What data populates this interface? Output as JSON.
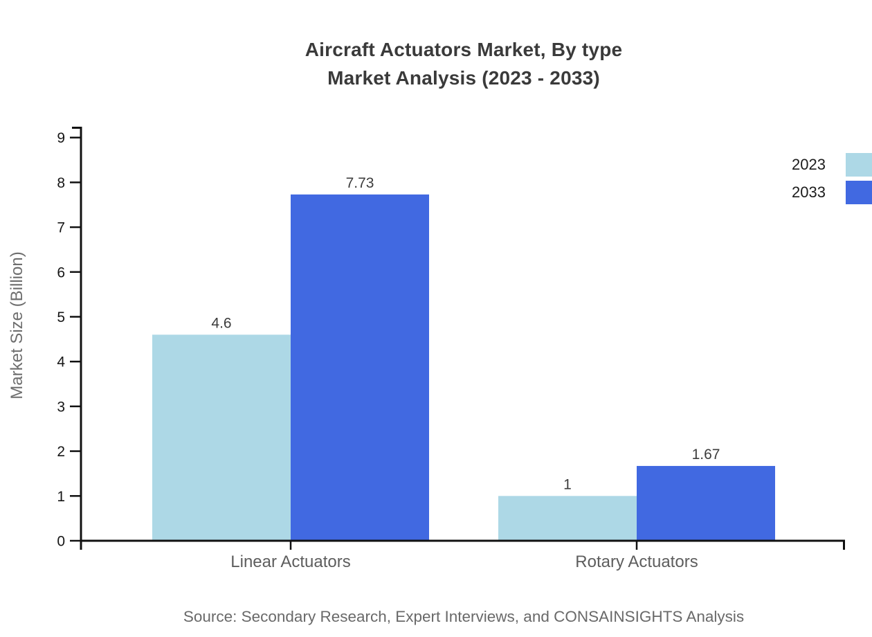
{
  "chart_data": {
    "type": "bar",
    "title": "Aircraft Actuators Market, By type Market Analysis (2023 - 2033)",
    "title_lines": [
      "Aircraft Actuators Market, By type",
      "Market Analysis (2023 - 2033)"
    ],
    "categories": [
      "Linear Actuators",
      "Rotary Actuators"
    ],
    "series": [
      {
        "name": "2023",
        "color": "#ADD8E6",
        "values": [
          4.6,
          1
        ]
      },
      {
        "name": "2033",
        "color": "#4169E1",
        "values": [
          7.73,
          1.67
        ]
      }
    ],
    "value_labels": [
      [
        "4.6",
        "1"
      ],
      [
        "7.73",
        "1.67"
      ]
    ],
    "xlabel": "",
    "ylabel": "Market Size (Billion)",
    "ylim": [
      0,
      9
    ],
    "yticks": [
      0,
      1,
      2,
      3,
      4,
      5,
      6,
      7,
      8,
      9
    ],
    "grid": false,
    "legend_position": "top-right"
  },
  "source": {
    "text": "Source: Secondary Research, Expert Interviews, and CONSAINSIGHTS Analysis"
  },
  "colors": {
    "background": "#FFFFFF",
    "axis": "#111111",
    "title": "#3A3A3A",
    "tick_label": "#161616",
    "category_label": "#5D5D5D",
    "value_label": "#3C3C3C",
    "axis_title": "#6E6E6E",
    "source": "#696969"
  }
}
